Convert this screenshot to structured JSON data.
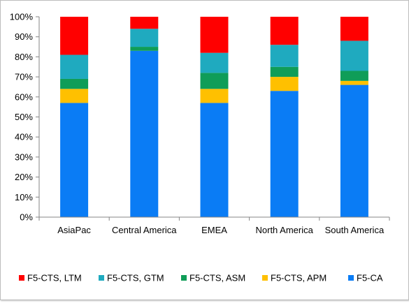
{
  "chart_data": {
    "type": "bar",
    "stacked": true,
    "percent": true,
    "title": "",
    "xlabel": "",
    "ylabel": "",
    "ylim": [
      0,
      100
    ],
    "ytick_labels": [
      "0%",
      "10%",
      "20%",
      "30%",
      "40%",
      "50%",
      "60%",
      "70%",
      "80%",
      "90%",
      "100%"
    ],
    "categories": [
      "AsiaPac",
      "Central America",
      "EMEA",
      "North America",
      "South America"
    ],
    "series": [
      {
        "name": "F5-CA",
        "color": "#0a7cf5",
        "values": [
          57,
          83,
          57,
          63,
          66
        ]
      },
      {
        "name": "F5-CTS, APM",
        "color": "#ffc000",
        "values": [
          7,
          0,
          7,
          7,
          2
        ]
      },
      {
        "name": "F5-CTS, ASM",
        "color": "#0f9d58",
        "values": [
          5,
          2,
          8,
          5,
          5
        ]
      },
      {
        "name": "F5-CTS, GTM",
        "color": "#1faabf",
        "values": [
          12,
          9,
          10,
          11,
          15
        ]
      },
      {
        "name": "F5-CTS, LTM",
        "color": "#ff0000",
        "values": [
          19,
          6,
          18,
          14,
          12
        ]
      }
    ],
    "legend": {
      "position": "bottom",
      "order": [
        "F5-CTS, LTM",
        "F5-CTS, GTM",
        "F5-CTS, ASM",
        "F5-CTS, APM",
        "F5-CA"
      ]
    },
    "grid": false
  }
}
